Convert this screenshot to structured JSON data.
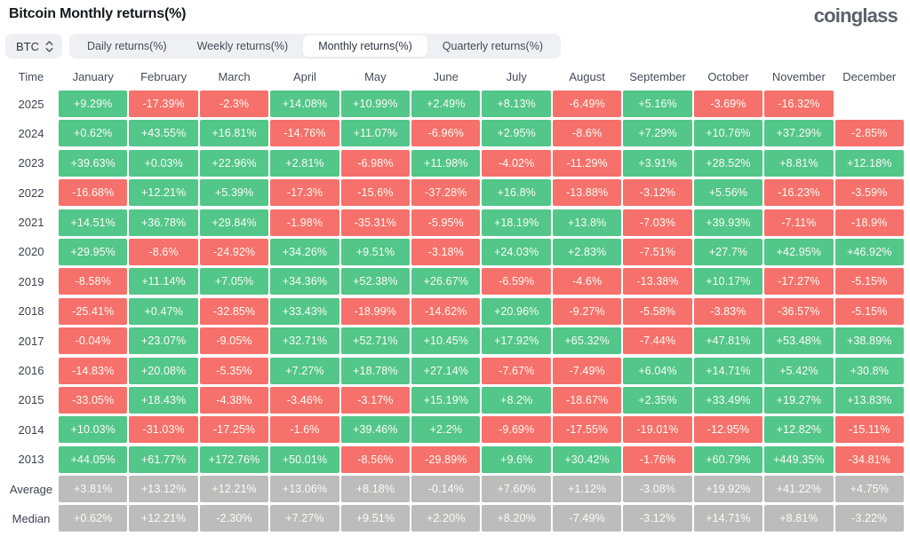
{
  "page": {
    "title": "Bitcoin Monthly returns(%)",
    "logo": "coinglass"
  },
  "controls": {
    "symbol_select": {
      "value": "BTC"
    },
    "tabs": [
      {
        "label": "Daily returns(%)",
        "active": false
      },
      {
        "label": "Weekly returns(%)",
        "active": false
      },
      {
        "label": "Monthly returns(%)",
        "active": true
      },
      {
        "label": "Quarterly returns(%)",
        "active": false
      }
    ]
  },
  "colors": {
    "positive": "#53c68a",
    "negative": "#f6716b",
    "neutral": "#bcbcbc",
    "tab_bar_bg": "#eef0f4",
    "active_tab_bg": "#ffffff"
  },
  "chart_data": {
    "type": "heatmap",
    "title": "Bitcoin Monthly returns(%)",
    "row_header": "Time",
    "columns": [
      "January",
      "February",
      "March",
      "April",
      "May",
      "June",
      "July",
      "August",
      "September",
      "October",
      "November",
      "December"
    ],
    "rows": [
      {
        "label": "2025",
        "values": [
          "+9.29%",
          "-17.39%",
          "-2.3%",
          "+14.08%",
          "+10.99%",
          "+2.49%",
          "+8.13%",
          "-6.49%",
          "+5.16%",
          "-3.69%",
          "-16.32%",
          ""
        ]
      },
      {
        "label": "2024",
        "values": [
          "+0.62%",
          "+43.55%",
          "+16.81%",
          "-14.76%",
          "+11.07%",
          "-6.96%",
          "+2.95%",
          "-8.6%",
          "+7.29%",
          "+10.76%",
          "+37.29%",
          "-2.85%"
        ]
      },
      {
        "label": "2023",
        "values": [
          "+39.63%",
          "+0.03%",
          "+22.96%",
          "+2.81%",
          "-6.98%",
          "+11.98%",
          "-4.02%",
          "-11.29%",
          "+3.91%",
          "+28.52%",
          "+8.81%",
          "+12.18%"
        ]
      },
      {
        "label": "2022",
        "values": [
          "-16.68%",
          "+12.21%",
          "+5.39%",
          "-17.3%",
          "-15.6%",
          "-37.28%",
          "+16.8%",
          "-13.88%",
          "-3.12%",
          "+5.56%",
          "-16.23%",
          "-3.59%"
        ]
      },
      {
        "label": "2021",
        "values": [
          "+14.51%",
          "+36.78%",
          "+29.84%",
          "-1.98%",
          "-35.31%",
          "-5.95%",
          "+18.19%",
          "+13.8%",
          "-7.03%",
          "+39.93%",
          "-7.11%",
          "-18.9%"
        ]
      },
      {
        "label": "2020",
        "values": [
          "+29.95%",
          "-8.6%",
          "-24.92%",
          "+34.26%",
          "+9.51%",
          "-3.18%",
          "+24.03%",
          "+2.83%",
          "-7.51%",
          "+27.7%",
          "+42.95%",
          "+46.92%"
        ]
      },
      {
        "label": "2019",
        "values": [
          "-8.58%",
          "+11.14%",
          "+7.05%",
          "+34.36%",
          "+52.38%",
          "+26.67%",
          "-6.59%",
          "-4.6%",
          "-13.38%",
          "+10.17%",
          "-17.27%",
          "-5.15%"
        ]
      },
      {
        "label": "2018",
        "values": [
          "-25.41%",
          "+0.47%",
          "-32.85%",
          "+33.43%",
          "-18.99%",
          "-14.62%",
          "+20.96%",
          "-9.27%",
          "-5.58%",
          "-3.83%",
          "-36.57%",
          "-5.15%"
        ]
      },
      {
        "label": "2017",
        "values": [
          "-0.04%",
          "+23.07%",
          "-9.05%",
          "+32.71%",
          "+52.71%",
          "+10.45%",
          "+17.92%",
          "+65.32%",
          "-7.44%",
          "+47.81%",
          "+53.48%",
          "+38.89%"
        ]
      },
      {
        "label": "2016",
        "values": [
          "-14.83%",
          "+20.08%",
          "-5.35%",
          "+7.27%",
          "+18.78%",
          "+27.14%",
          "-7.67%",
          "-7.49%",
          "+6.04%",
          "+14.71%",
          "+5.42%",
          "+30.8%"
        ]
      },
      {
        "label": "2015",
        "values": [
          "-33.05%",
          "+18.43%",
          "-4.38%",
          "-3.46%",
          "-3.17%",
          "+15.19%",
          "+8.2%",
          "-18.67%",
          "+2.35%",
          "+33.49%",
          "+19.27%",
          "+13.83%"
        ]
      },
      {
        "label": "2014",
        "values": [
          "+10.03%",
          "-31.03%",
          "-17.25%",
          "-1.6%",
          "+39.46%",
          "+2.2%",
          "-9.69%",
          "-17.55%",
          "-19.01%",
          "-12.95%",
          "+12.82%",
          "-15.11%"
        ]
      },
      {
        "label": "2013",
        "values": [
          "+44.05%",
          "+61.77%",
          "+172.76%",
          "+50.01%",
          "-8.56%",
          "-29.89%",
          "+9.6%",
          "+30.42%",
          "-1.76%",
          "+60.79%",
          "+449.35%",
          "-34.81%"
        ]
      },
      {
        "label": "Average",
        "style": "neutral",
        "values": [
          "+3.81%",
          "+13.12%",
          "+12.21%",
          "+13.06%",
          "+8.18%",
          "-0.14%",
          "+7.60%",
          "+1.12%",
          "-3.08%",
          "+19.92%",
          "+41.22%",
          "+4.75%"
        ]
      },
      {
        "label": "Median",
        "style": "neutral",
        "values": [
          "+0.62%",
          "+12.21%",
          "-2.30%",
          "+7.27%",
          "+9.51%",
          "+2.20%",
          "+8.20%",
          "-7.49%",
          "-3.12%",
          "+14.71%",
          "+8.81%",
          "-3.22%"
        ]
      }
    ]
  }
}
